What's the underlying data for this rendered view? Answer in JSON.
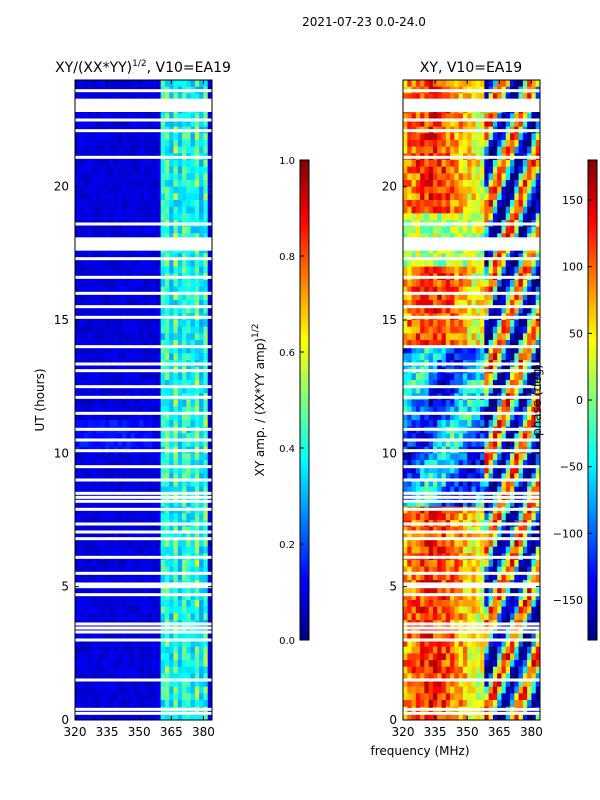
{
  "figure_title": "2021-07-23 0.0-24.0",
  "colors": {
    "jet": [
      "#00007f",
      "#0000ff",
      "#007fff",
      "#00ffff",
      "#7fff7f",
      "#ffff00",
      "#ff7f00",
      "#ff0000",
      "#7f0000"
    ],
    "gap": "#ffffff",
    "axis": "#000000"
  },
  "chart_data": [
    {
      "type": "heatmap",
      "title_base": "XY/(XX*YY)",
      "title_exp": "1/2",
      "title_suffix": ", V10=EA19",
      "xlabel": "",
      "ylabel": "UT (hours)",
      "xlim": [
        320,
        384
      ],
      "ylim": [
        0,
        24
      ],
      "xticks": [
        320,
        335,
        350,
        365,
        380
      ],
      "yticks": [
        0,
        5,
        10,
        15,
        20
      ],
      "colorbar": {
        "label_base": "XY amp. / (XX*YY amp)",
        "label_exp": "1/2",
        "range": [
          0.0,
          1.0
        ],
        "ticks": [
          "0.0",
          "0.2",
          "0.4",
          "0.6",
          "0.8",
          "1.0"
        ]
      },
      "bright_band_MHz": [
        361,
        381
      ],
      "description_values": "background amplitude ~0.1 (dark blue); channels 361-381 MHz show amplitudes 0.3-0.6"
    },
    {
      "type": "heatmap",
      "title_base": "XY",
      "title_exp": "",
      "title_suffix": ", V10=EA19",
      "xlabel": "frequency (MHz)",
      "ylabel": "",
      "xlim": [
        320,
        384
      ],
      "ylim": [
        0,
        24
      ],
      "xticks": [
        320,
        335,
        350,
        365,
        380
      ],
      "yticks": [
        0,
        5,
        10,
        15,
        20
      ],
      "colorbar": {
        "label": "phase (deg)",
        "range": [
          -180,
          180
        ],
        "ticks": [
          "150",
          "100",
          "50",
          "0",
          "−50",
          "−100",
          "−150"
        ]
      }
    }
  ],
  "gap_rows_hours": [
    0.25,
    0.4,
    1.5,
    3.0,
    3.3,
    3.45,
    3.6,
    4.7,
    5.0,
    5.1,
    5.5,
    6.1,
    6.8,
    7.05,
    7.35,
    7.9,
    8.2,
    8.35,
    8.5,
    9.0,
    9.5,
    10.1,
    10.5,
    10.9,
    11.5,
    12.1,
    12.5,
    13.1,
    13.35,
    14.0,
    15.1,
    15.5,
    16.0,
    16.6,
    17.3,
    17.7,
    17.9,
    18.6,
    21.1,
    22.1,
    22.5,
    23.1,
    23.6
  ]
}
